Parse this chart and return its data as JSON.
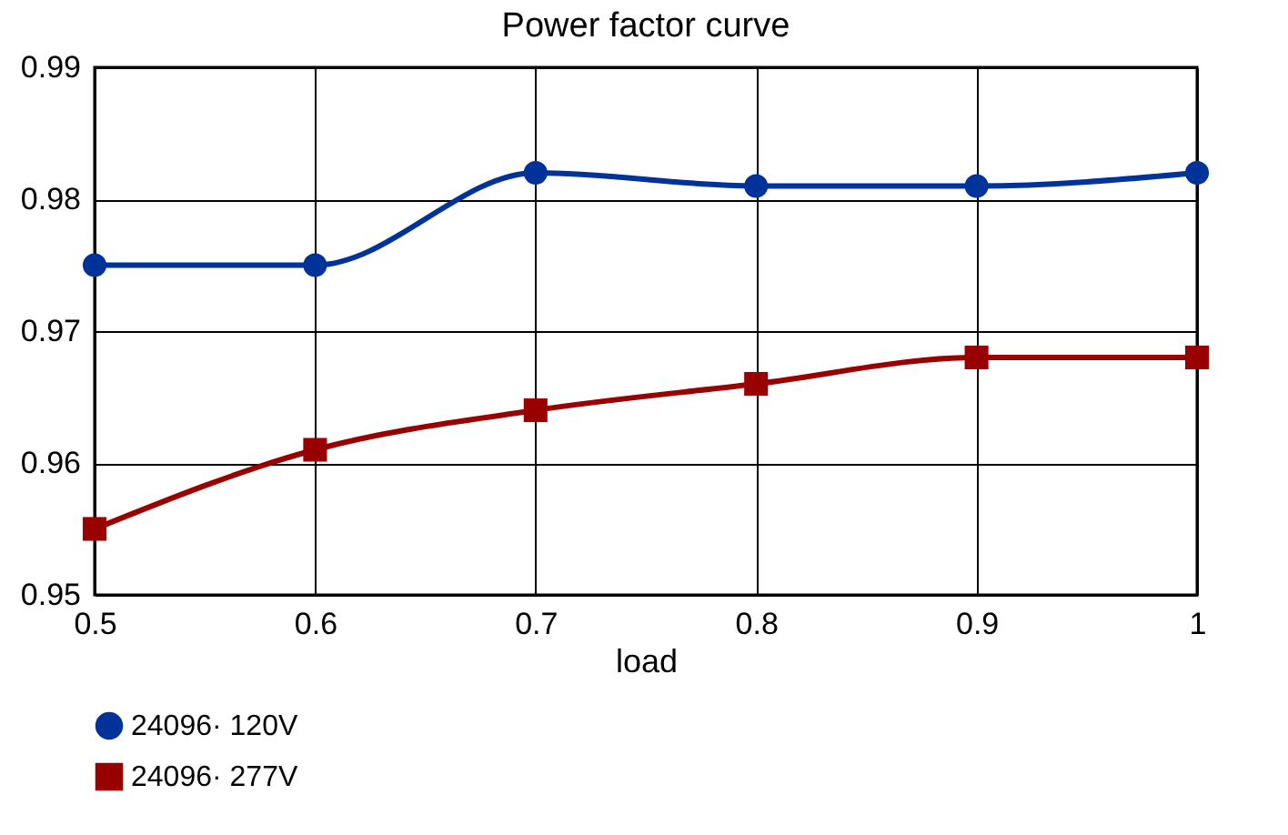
{
  "chart_data": {
    "type": "line",
    "title": "Power factor curve",
    "xlabel": "load",
    "x": [
      0.5,
      0.6,
      0.7,
      0.8,
      0.9,
      1
    ],
    "series": [
      {
        "name": "24096· 120V",
        "color": "#003399",
        "marker": "circle",
        "values": [
          0.975,
          0.975,
          0.982,
          0.981,
          0.981,
          0.982
        ]
      },
      {
        "name": "24096· 277V",
        "color": "#990000",
        "marker": "square",
        "values": [
          0.955,
          0.961,
          0.964,
          0.966,
          0.968,
          0.968
        ]
      }
    ],
    "xlim": [
      0.5,
      1
    ],
    "xticks": [
      0.5,
      0.6,
      0.7,
      0.8,
      0.9,
      1
    ],
    "ylim": [
      0.95,
      0.99
    ],
    "yticks": [
      0.95,
      0.96,
      0.97,
      0.98,
      0.99
    ],
    "grid": true,
    "legend": "bottom",
    "line_style": "solid"
  }
}
